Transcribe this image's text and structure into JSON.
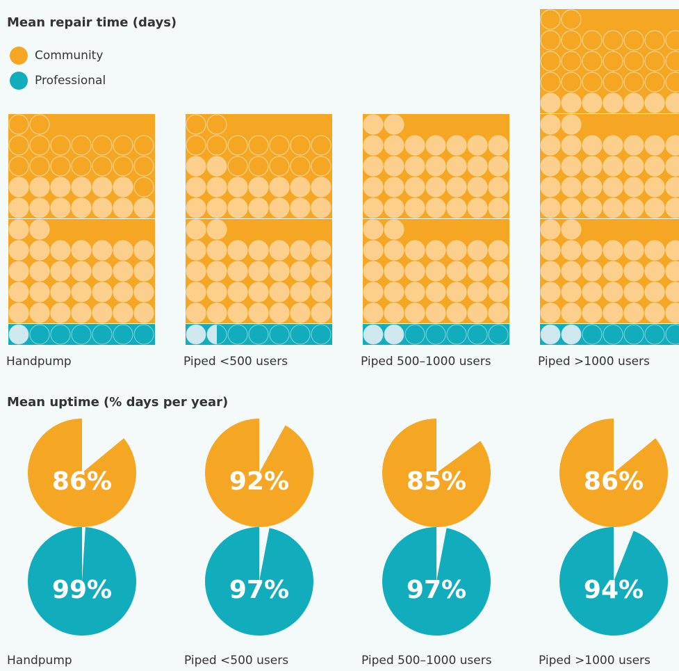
{
  "chart_data": [
    {
      "type": "waffle",
      "title": "Mean repair time (days)",
      "categories": [
        "Handpump",
        "Piped <500 users",
        "Piped 500–1000 users",
        "Piped >1000 users"
      ],
      "series": [
        {
          "name": "Community",
          "color": "#f5a623",
          "values": [
            43,
            46,
            60,
            67
          ]
        },
        {
          "name": "Professional",
          "color": "#12adbd",
          "values": [
            1,
            1.5,
            2,
            2
          ]
        }
      ]
    },
    {
      "type": "pie",
      "title": "Mean uptime (% days per year)",
      "categories": [
        "Handpump",
        "Piped <500 users",
        "Piped 500–1000 users",
        "Piped >1000 users"
      ],
      "series": [
        {
          "name": "Community",
          "color": "#f5a623",
          "values": [
            86,
            92,
            85,
            86
          ],
          "value_labels": [
            "86%",
            "92%",
            "85%",
            "86%"
          ]
        },
        {
          "name": "Professional",
          "color": "#12adbd",
          "values": [
            99,
            97,
            97,
            94
          ],
          "value_labels": [
            "99%",
            "97%",
            "97%",
            "94%"
          ]
        }
      ]
    }
  ]
}
